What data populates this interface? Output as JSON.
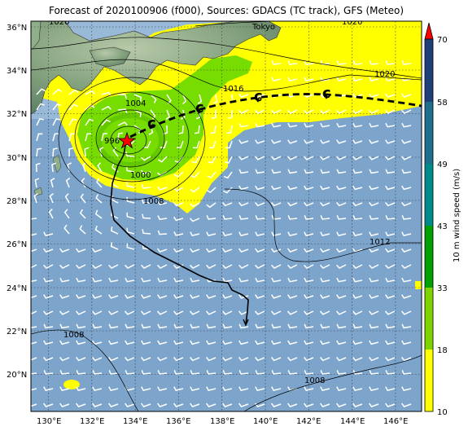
{
  "title": "Forecast of 2020100906 (f000), Sources: GDACS (TC track), GFS (Meteo)",
  "map": {
    "lon_ticks": [
      "130°E",
      "132°E",
      "134°E",
      "136°E",
      "138°E",
      "140°E",
      "142°E",
      "144°E",
      "146°E"
    ],
    "lat_ticks": [
      "36°N",
      "34°N",
      "32°N",
      "30°N",
      "28°N",
      "26°N",
      "24°N",
      "22°N",
      "20°N"
    ],
    "city_label": "Tokyo",
    "isobar_labels": [
      "1020",
      "1020",
      "1016",
      "1012",
      "1008",
      "1008",
      "1008",
      "1004",
      "1000",
      "996",
      "1020"
    ]
  },
  "colorbar": {
    "label": "10 m wind speed (m/s)",
    "ticks": [
      "10",
      "18",
      "33",
      "43",
      "49",
      "58",
      "70"
    ],
    "colors": [
      "#ffff00",
      "#7fd400",
      "#00a000",
      "#008b8b",
      "#1f6e8c",
      "#1f3f7a",
      "#ff0000"
    ]
  },
  "colors": {
    "ocean": "#7da5cc",
    "yellow": "#ffff00",
    "green": "#77dd00",
    "land": "#8fae8a",
    "track": "#000000"
  },
  "track": {
    "icon": "typhoon-icon",
    "center_marker": "red-star-icon"
  }
}
